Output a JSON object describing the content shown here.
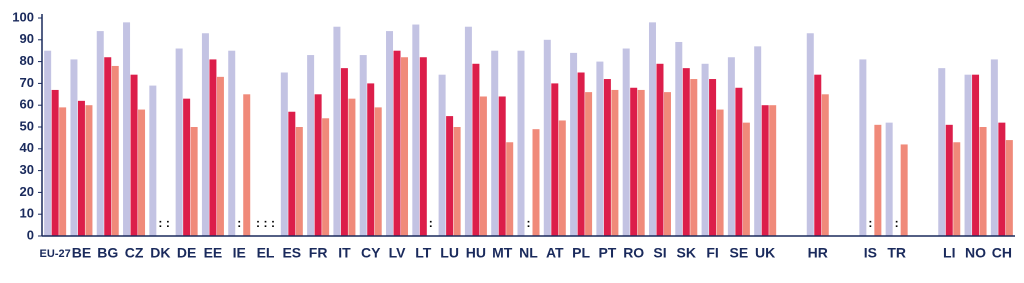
{
  "chart_data": {
    "type": "bar",
    "categories": [
      "EU-27",
      "BE",
      "BG",
      "CZ",
      "DK",
      "DE",
      "EE",
      "IE",
      "EL",
      "ES",
      "FR",
      "IT",
      "CY",
      "LV",
      "LT",
      "LU",
      "HU",
      "MT",
      "NL",
      "AT",
      "PL",
      "PT",
      "RO",
      "SI",
      "SK",
      "FI",
      "SE",
      "UK",
      null,
      "HR",
      null,
      "IS",
      "TR",
      null,
      "LI",
      "NO",
      "CH"
    ],
    "series": [
      {
        "color": "#c3c3e3",
        "values": [
          85,
          81,
          94,
          98,
          69,
          86,
          93,
          85,
          null,
          75,
          83,
          96,
          83,
          94,
          97,
          74,
          96,
          85,
          85,
          90,
          84,
          80,
          86,
          98,
          89,
          79,
          82,
          87,
          null,
          93,
          null,
          81,
          52,
          null,
          77,
          74,
          81
        ],
        "value_labels": [
          null,
          null,
          null,
          null,
          null,
          null,
          null,
          null,
          ":",
          null,
          null,
          null,
          null,
          null,
          null,
          null,
          null,
          null,
          null,
          null,
          null,
          null,
          null,
          null,
          null,
          null,
          null,
          null,
          null,
          null,
          null,
          null,
          null,
          null,
          null,
          null,
          null
        ]
      },
      {
        "color": "#dc1e4a",
        "values": [
          67,
          62,
          82,
          74,
          null,
          63,
          81,
          null,
          null,
          57,
          65,
          77,
          70,
          85,
          82,
          55,
          79,
          64,
          null,
          70,
          75,
          72,
          68,
          79,
          77,
          72,
          68,
          60,
          null,
          74,
          null,
          null,
          null,
          null,
          51,
          74,
          52
        ],
        "value_labels": [
          null,
          null,
          null,
          null,
          ":",
          null,
          null,
          ":",
          ":",
          null,
          null,
          null,
          null,
          null,
          null,
          null,
          null,
          null,
          ":",
          null,
          null,
          null,
          null,
          null,
          null,
          null,
          null,
          null,
          null,
          null,
          null,
          ":",
          ":",
          null,
          null,
          null,
          null
        ]
      },
      {
        "color": "#f08a7a",
        "values": [
          59,
          60,
          78,
          58,
          null,
          50,
          73,
          65,
          null,
          50,
          54,
          63,
          59,
          82,
          null,
          50,
          64,
          43,
          49,
          53,
          66,
          67,
          67,
          66,
          72,
          58,
          52,
          60,
          null,
          65,
          null,
          51,
          42,
          null,
          43,
          50,
          44
        ],
        "value_labels": [
          null,
          null,
          null,
          null,
          ":",
          null,
          null,
          null,
          ":",
          null,
          null,
          null,
          null,
          null,
          ":",
          null,
          null,
          null,
          null,
          null,
          null,
          null,
          null,
          null,
          null,
          null,
          null,
          null,
          null,
          null,
          null,
          null,
          null,
          null,
          null,
          null,
          null
        ]
      }
    ],
    "ylim": [
      0,
      100
    ],
    "yticks": [
      0,
      10,
      20,
      30,
      40,
      50,
      60,
      70,
      80,
      90,
      100
    ]
  }
}
